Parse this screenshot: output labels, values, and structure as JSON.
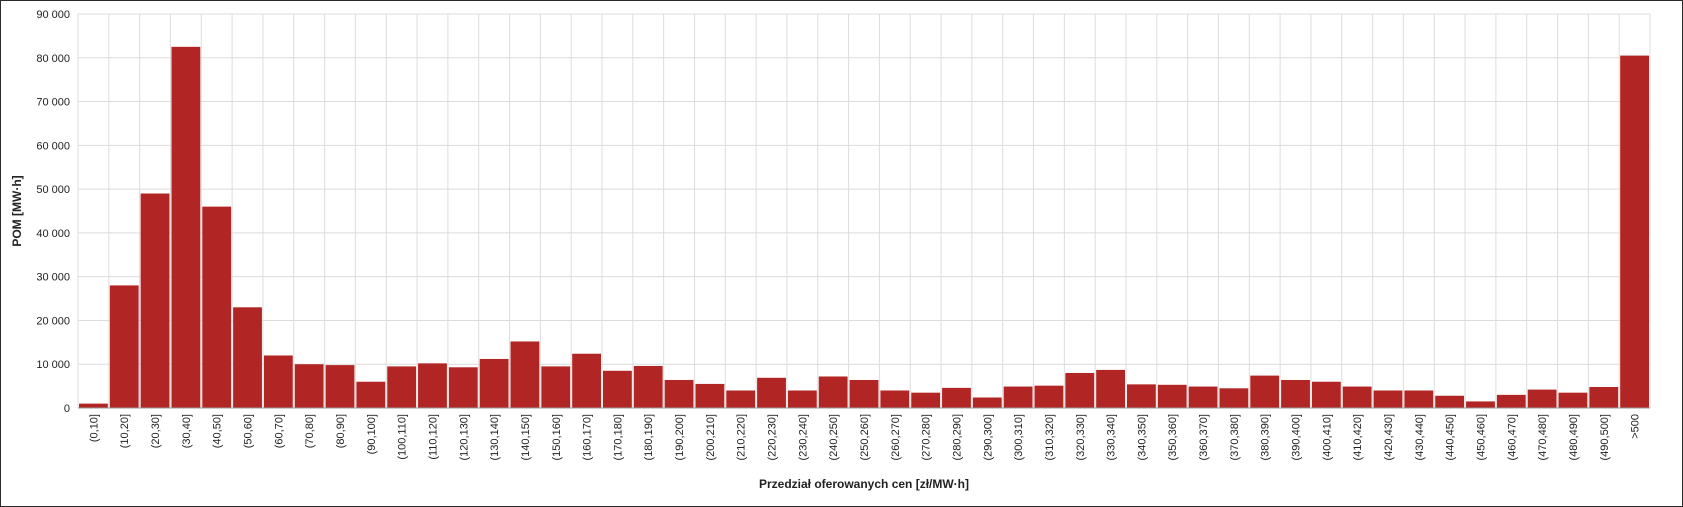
{
  "chart_data": {
    "type": "bar",
    "title": "",
    "xlabel": "Przedział oferowanych cen [zł/MW·h]",
    "ylabel": "POM [MW·h]",
    "ylim": [
      0,
      90000
    ],
    "yticks": [
      "0",
      "10 000",
      "20 000",
      "30 000",
      "40 000",
      "50 000",
      "60 000",
      "70 000",
      "80 000",
      "90 000"
    ],
    "grid": true,
    "bar_color": "#b22525",
    "categories": [
      "(0,10]",
      "(10,20]",
      "(20,30]",
      "(30,40]",
      "(40,50]",
      "(50,60]",
      "(60,70]",
      "(70,80]",
      "(80,90]",
      "(90,100]",
      "(100,110]",
      "(110,120]",
      "(120,130]",
      "(130,140]",
      "(140,150]",
      "(150,160]",
      "(160,170]",
      "(170,180]",
      "(180,190]",
      "(190,200]",
      "(200,210]",
      "(210,220]",
      "(220,230]",
      "(230,240]",
      "(240,250]",
      "(250,260]",
      "(260,270]",
      "(270,280]",
      "(280,290]",
      "(290,300]",
      "(300,310]",
      "(310,320]",
      "(320,330]",
      "(330,340]",
      "(340,350]",
      "(350,360]",
      "(360,370]",
      "(370,380]",
      "(380,390]",
      "(390,400]",
      "(400,410]",
      "(410,420]",
      "(420,430]",
      "(430,440]",
      "(440,450]",
      "(450,460]",
      "(460,470]",
      "(470,480]",
      "(480,490]",
      "(490,500]",
      ">500"
    ],
    "values": [
      1000,
      28000,
      49000,
      82500,
      46000,
      23000,
      12000,
      10000,
      9800,
      6000,
      9500,
      10200,
      9300,
      11200,
      15200,
      9500,
      12400,
      8500,
      9600,
      6400,
      5500,
      4000,
      6900,
      4000,
      7200,
      6400,
      4000,
      3500,
      4600,
      2400,
      4900,
      5100,
      8000,
      8700,
      5400,
      5300,
      4900,
      4500,
      7400,
      6400,
      6000,
      4900,
      4000,
      4000,
      2800,
      1500,
      3000,
      4200,
      3500,
      4800,
      80500
    ]
  }
}
